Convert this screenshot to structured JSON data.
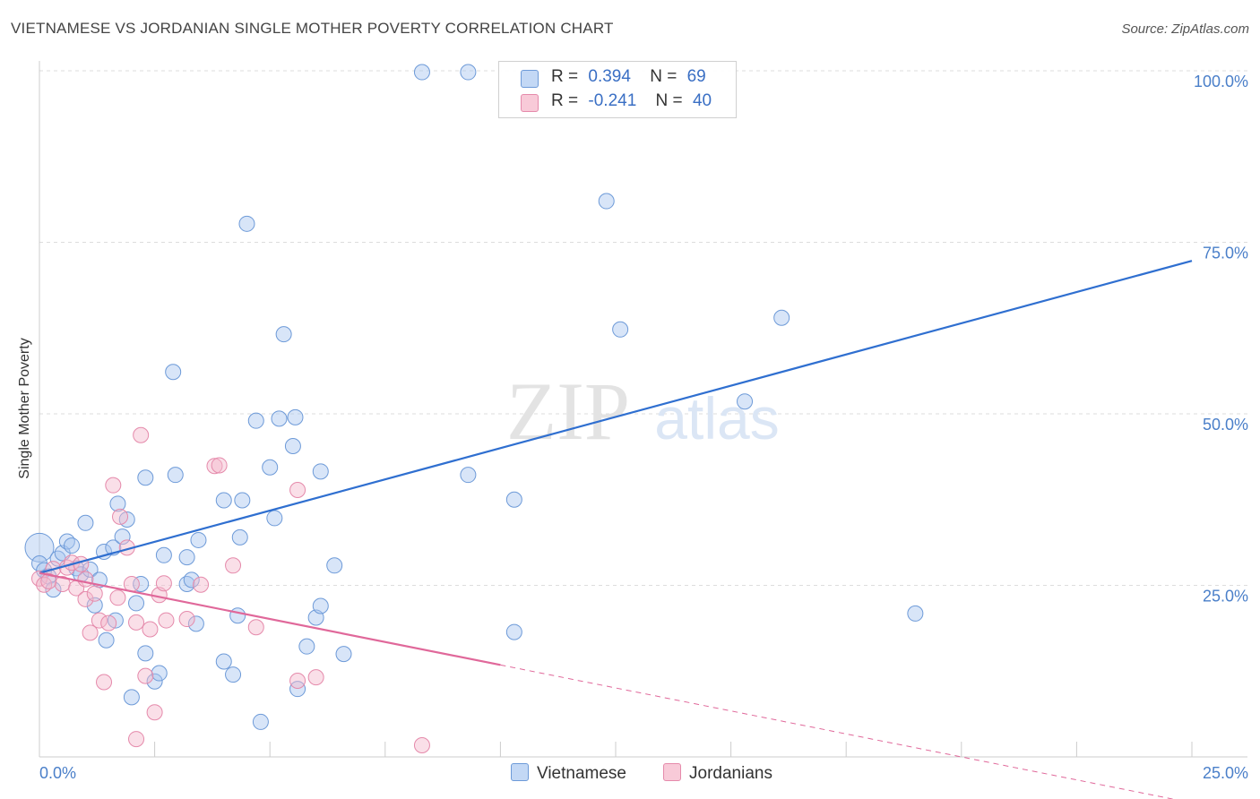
{
  "title": "VIETNAMESE VS JORDANIAN SINGLE MOTHER POVERTY CORRELATION CHART",
  "source": "Source: ZipAtlas.com",
  "watermark": {
    "zip": "ZIP",
    "atlas": "atlas"
  },
  "legend_rows": [
    {
      "r_label": "R =",
      "r_value": "0.394",
      "n_label": "N =",
      "n_value": "69"
    },
    {
      "r_label": "R =",
      "r_value": "-0.241",
      "n_label": "N =",
      "n_value": "40"
    }
  ],
  "chart_data": {
    "type": "scatter",
    "xlabel": "",
    "ylabel": "Single Mother Poverty",
    "xlim": [
      0,
      25
    ],
    "ylim": [
      0,
      100
    ],
    "x_tick_labels": [
      "0.0%",
      "25.0%"
    ],
    "y_tick_labels": [
      "25.0%",
      "50.0%",
      "75.0%",
      "100.0%"
    ],
    "y_ticks": [
      25,
      50,
      75,
      100
    ],
    "grid": "horizontal dashed",
    "legend_position": "top-center",
    "colors": {
      "vietnamese": "#a8c6f0",
      "vietnamese_line": "#2f6fd0",
      "jordanians": "#f5b8cc",
      "jordanians_line": "#e0689a"
    },
    "series": [
      {
        "name": "Vietnamese",
        "r": 0.394,
        "n": 69,
        "trend": {
          "x0": 0.0,
          "y0": 26.8,
          "x1": 25.0,
          "y1": 72.3
        },
        "points": [
          [
            0.0,
            30.5
          ],
          [
            0.0,
            28.2
          ],
          [
            0.1,
            27.2
          ],
          [
            0.2,
            26.3
          ],
          [
            0.3,
            24.4
          ],
          [
            0.4,
            28.9
          ],
          [
            0.5,
            29.7
          ],
          [
            0.6,
            31.4
          ],
          [
            0.7,
            30.8
          ],
          [
            0.8,
            27.5
          ],
          [
            0.9,
            26.6
          ],
          [
            1.0,
            34.1
          ],
          [
            1.1,
            27.3
          ],
          [
            1.2,
            22.1
          ],
          [
            1.3,
            25.8
          ],
          [
            1.4,
            29.9
          ],
          [
            1.45,
            17.0
          ],
          [
            1.6,
            30.5
          ],
          [
            1.65,
            19.9
          ],
          [
            1.7,
            36.9
          ],
          [
            1.8,
            32.1
          ],
          [
            1.9,
            34.6
          ],
          [
            2.0,
            8.7
          ],
          [
            2.1,
            22.4
          ],
          [
            2.2,
            25.2
          ],
          [
            2.3,
            15.1
          ],
          [
            2.3,
            40.7
          ],
          [
            2.5,
            11.0
          ],
          [
            2.6,
            12.2
          ],
          [
            2.7,
            29.4
          ],
          [
            2.9,
            56.1
          ],
          [
            2.95,
            41.1
          ],
          [
            3.2,
            29.1
          ],
          [
            3.2,
            25.2
          ],
          [
            3.3,
            25.8
          ],
          [
            3.4,
            19.4
          ],
          [
            3.45,
            31.6
          ],
          [
            4.0,
            37.4
          ],
          [
            4.0,
            13.9
          ],
          [
            4.2,
            12.0
          ],
          [
            4.3,
            20.6
          ],
          [
            4.35,
            32.0
          ],
          [
            4.4,
            37.4
          ],
          [
            4.5,
            77.7
          ],
          [
            4.7,
            49.0
          ],
          [
            4.8,
            5.1
          ],
          [
            5.0,
            42.2
          ],
          [
            5.1,
            34.8
          ],
          [
            5.2,
            49.3
          ],
          [
            5.3,
            61.6
          ],
          [
            5.5,
            45.3
          ],
          [
            5.55,
            49.5
          ],
          [
            5.6,
            9.9
          ],
          [
            5.8,
            16.1
          ],
          [
            6.0,
            20.3
          ],
          [
            6.1,
            41.6
          ],
          [
            6.1,
            22.0
          ],
          [
            6.4,
            27.9
          ],
          [
            6.6,
            15.0
          ],
          [
            8.3,
            99.8
          ],
          [
            9.3,
            99.8
          ],
          [
            9.3,
            41.1
          ],
          [
            10.3,
            37.5
          ],
          [
            10.3,
            18.2
          ],
          [
            12.3,
            81.0
          ],
          [
            12.6,
            62.3
          ],
          [
            15.3,
            51.8
          ],
          [
            16.1,
            64.0
          ],
          [
            19.0,
            20.9
          ]
        ]
      },
      {
        "name": "Jordanians",
        "r": -0.241,
        "n": 40,
        "trend": {
          "x0": 0.0,
          "y0": 26.8,
          "x1": 10.0,
          "y1": 13.4,
          "x_dashed_end": 25.0
        },
        "points": [
          [
            0.0,
            26.0
          ],
          [
            0.1,
            25.1
          ],
          [
            0.3,
            27.4
          ],
          [
            0.5,
            25.2
          ],
          [
            0.6,
            27.6
          ],
          [
            0.7,
            28.3
          ],
          [
            0.8,
            24.6
          ],
          [
            0.9,
            28.1
          ],
          [
            1.0,
            23.0
          ],
          [
            1.2,
            23.8
          ],
          [
            1.3,
            19.9
          ],
          [
            1.1,
            18.1
          ],
          [
            1.4,
            10.9
          ],
          [
            1.5,
            19.5
          ],
          [
            1.6,
            39.6
          ],
          [
            1.7,
            23.2
          ],
          [
            1.75,
            35.0
          ],
          [
            1.9,
            30.5
          ],
          [
            2.0,
            25.2
          ],
          [
            2.1,
            19.6
          ],
          [
            2.1,
            2.6
          ],
          [
            2.2,
            46.9
          ],
          [
            2.3,
            11.8
          ],
          [
            2.4,
            18.6
          ],
          [
            2.5,
            6.5
          ],
          [
            2.6,
            23.6
          ],
          [
            2.7,
            25.3
          ],
          [
            2.75,
            19.9
          ],
          [
            3.2,
            20.1
          ],
          [
            3.5,
            25.1
          ],
          [
            3.8,
            42.4
          ],
          [
            3.9,
            42.5
          ],
          [
            4.2,
            27.9
          ],
          [
            4.7,
            18.9
          ],
          [
            5.6,
            11.1
          ],
          [
            5.6,
            38.9
          ],
          [
            6.0,
            11.6
          ],
          [
            8.3,
            1.7
          ],
          [
            0.2,
            25.6
          ],
          [
            1.0,
            25.9
          ]
        ]
      }
    ]
  },
  "bottom_legend": [
    "Vietnamese",
    "Jordanians"
  ]
}
